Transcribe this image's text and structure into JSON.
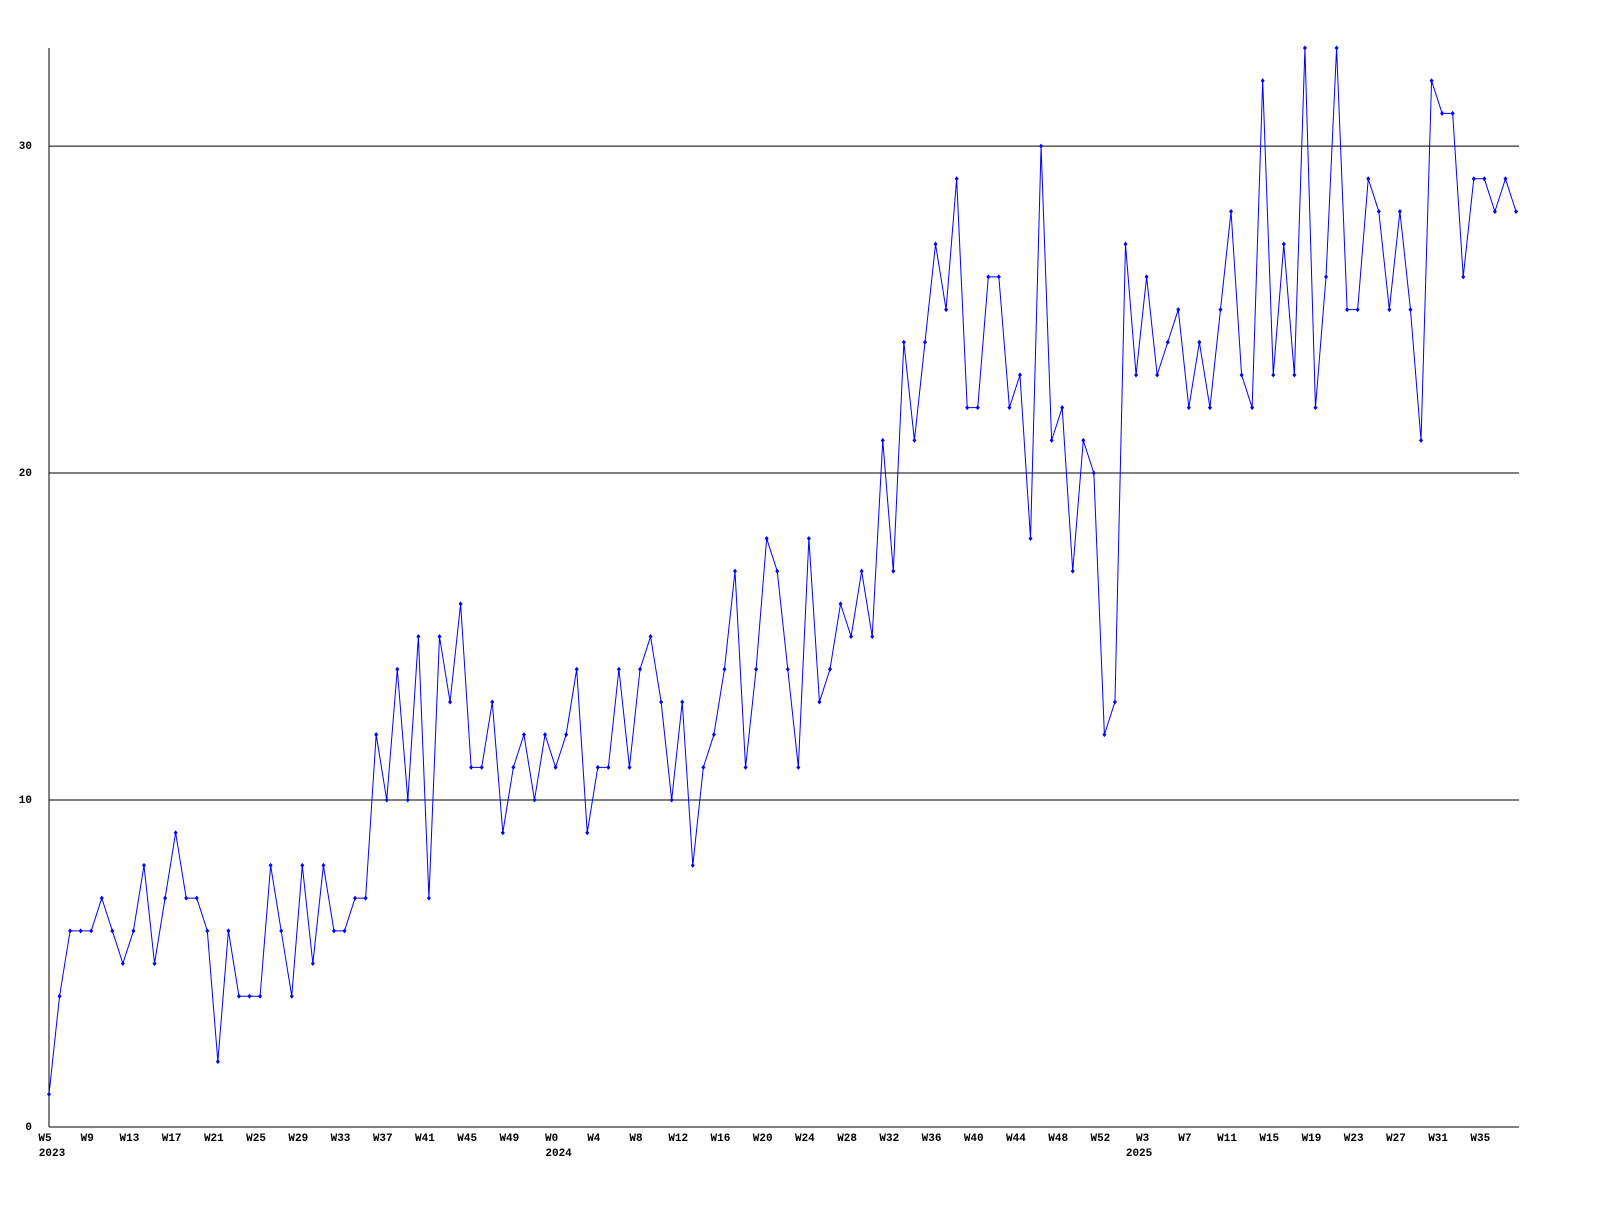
{
  "chart_data": {
    "type": "line",
    "categories": [
      "W5",
      null,
      null,
      null,
      "W9",
      null,
      null,
      null,
      "W13",
      null,
      null,
      null,
      "W17",
      null,
      null,
      null,
      "W21",
      null,
      null,
      null,
      "W25",
      null,
      null,
      null,
      "W29",
      null,
      null,
      null,
      "W33",
      null,
      null,
      null,
      "W37",
      null,
      null,
      null,
      "W41",
      null,
      null,
      null,
      "W45",
      null,
      null,
      null,
      "W49",
      null,
      null,
      null,
      "W0",
      null,
      null,
      null,
      "W4",
      null,
      null,
      null,
      "W8",
      null,
      null,
      null,
      "W12",
      null,
      null,
      null,
      "W16",
      null,
      null,
      null,
      "W20",
      null,
      null,
      null,
      "W24",
      null,
      null,
      null,
      "W28",
      null,
      null,
      null,
      "W32",
      null,
      null,
      null,
      "W36",
      null,
      null,
      null,
      "W40",
      null,
      null,
      null,
      "W44",
      null,
      null,
      null,
      "W48",
      null,
      null,
      null,
      "W52",
      null,
      null,
      null,
      "W3",
      null,
      null,
      null,
      "W7",
      null,
      null,
      null,
      "W11",
      null,
      null,
      null,
      "W15",
      null,
      null,
      null,
      "W19",
      null,
      null,
      null,
      "W23",
      null,
      null,
      null,
      "W27",
      null,
      null,
      null,
      "W31",
      null,
      null,
      null,
      "W35",
      null,
      null,
      null
    ],
    "years": [
      "2023",
      null,
      null,
      null,
      null,
      null,
      null,
      null,
      null,
      null,
      null,
      null,
      null,
      null,
      null,
      null,
      null,
      null,
      null,
      null,
      null,
      null,
      null,
      null,
      null,
      null,
      null,
      null,
      null,
      null,
      null,
      null,
      null,
      null,
      null,
      null,
      null,
      null,
      null,
      null,
      null,
      null,
      null,
      null,
      null,
      null,
      null,
      null,
      "2024",
      null,
      null,
      null,
      null,
      null,
      null,
      null,
      null,
      null,
      null,
      null,
      null,
      null,
      null,
      null,
      null,
      null,
      null,
      null,
      null,
      null,
      null,
      null,
      null,
      null,
      null,
      null,
      null,
      null,
      null,
      null,
      null,
      null,
      null,
      null,
      null,
      null,
      null,
      null,
      null,
      null,
      null,
      null,
      null,
      null,
      null,
      null,
      null,
      null,
      null,
      null,
      null,
      null,
      null,
      "2025",
      null,
      null,
      null,
      null,
      null,
      null,
      null,
      null,
      null,
      null,
      null,
      null,
      null,
      null,
      null,
      null,
      null,
      null,
      null,
      null,
      null,
      null,
      null,
      null,
      null,
      null,
      null,
      null,
      null,
      null,
      null,
      null,
      null,
      null,
      null,
      null,
      null
    ],
    "series": [
      {
        "color": "#0000ff",
        "values": [
          1,
          4,
          6,
          6,
          6,
          7,
          6,
          5,
          6,
          8,
          5,
          7,
          9,
          7,
          7,
          6,
          2,
          6,
          4,
          4,
          4,
          8,
          6,
          4,
          8,
          5,
          8,
          6,
          6,
          7,
          7,
          12,
          10,
          14,
          10,
          15,
          7,
          15,
          13,
          16,
          11,
          11,
          13,
          9,
          11,
          12,
          10,
          12,
          11,
          12,
          14,
          9,
          11,
          11,
          14,
          11,
          14,
          15,
          13,
          10,
          13,
          8,
          11,
          12,
          14,
          17,
          11,
          14,
          18,
          17,
          14,
          11,
          18,
          13,
          14,
          16,
          15,
          17,
          15,
          21,
          17,
          24,
          21,
          24,
          27,
          25,
          29,
          22,
          22,
          26,
          26,
          22,
          23,
          18,
          30,
          21,
          22,
          17,
          21,
          20,
          12,
          13,
          27,
          23,
          26,
          23,
          24,
          25,
          22,
          24,
          22,
          25,
          28,
          23,
          22,
          32,
          23,
          27,
          23,
          33,
          22,
          26,
          33,
          25,
          25,
          29,
          28,
          25,
          28,
          25,
          21,
          32,
          31,
          31,
          26,
          29,
          29,
          28,
          29,
          28
        ]
      }
    ],
    "ylim": [
      0,
      33
    ],
    "yticks": [
      0,
      10,
      20,
      30
    ],
    "grid": true
  }
}
